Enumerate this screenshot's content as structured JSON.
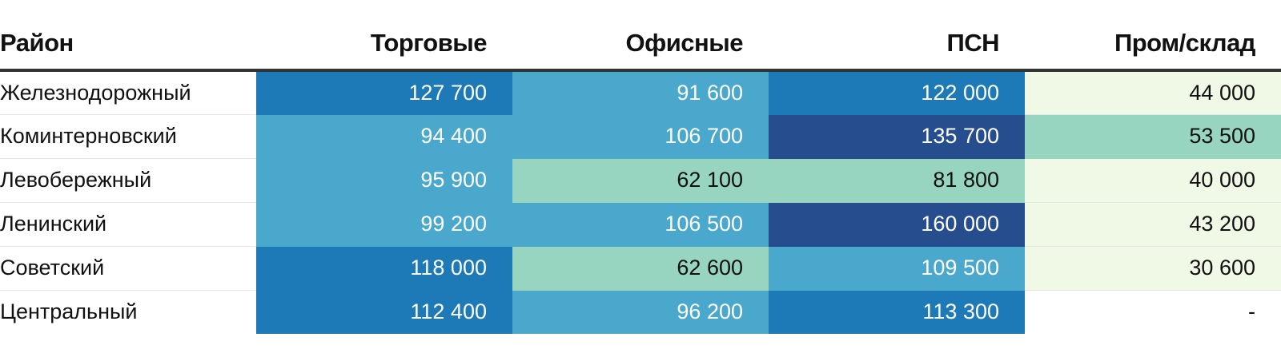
{
  "chart_data": {
    "type": "table",
    "columns": [
      "Район",
      "Торговые",
      "Офисные",
      "ПСН",
      "Пром/склад"
    ],
    "rows": [
      {
        "district": "Железнодорожный",
        "values": [
          "127 700",
          "91 600",
          "122 000",
          "44 000"
        ],
        "numbers": [
          127700,
          91600,
          122000,
          44000
        ]
      },
      {
        "district": "Коминтерновский",
        "values": [
          "94 400",
          "106 700",
          "135 700",
          "53 500"
        ],
        "numbers": [
          94400,
          106700,
          135700,
          53500
        ]
      },
      {
        "district": "Левобережный",
        "values": [
          "95 900",
          "62 100",
          "81 800",
          "40 000"
        ],
        "numbers": [
          95900,
          62100,
          81800,
          40000
        ]
      },
      {
        "district": "Ленинский",
        "values": [
          "99 200",
          "106 500",
          "160 000",
          "43 200"
        ],
        "numbers": [
          99200,
          106500,
          160000,
          43200
        ]
      },
      {
        "district": "Советский",
        "values": [
          "118 000",
          "62 600",
          "109 500",
          "30 600"
        ],
        "numbers": [
          118000,
          62600,
          109500,
          30600
        ]
      },
      {
        "district": "Центральный",
        "values": [
          "112 400",
          "96 200",
          "113 300",
          "-"
        ],
        "numbers": [
          112400,
          96200,
          113300,
          null
        ]
      }
    ],
    "color_scale": {
      "thresholds": [
        50000,
        85000,
        110000,
        130000
      ],
      "fills": [
        "#f0f8e6",
        "#97d5c0",
        "#4aa8cc",
        "#1d7ab7",
        "#264e8e"
      ],
      "text_colors": [
        "#111111",
        "#111111",
        "#ffffff",
        "#ffffff",
        "#ffffff"
      ],
      "empty_fill": "#ffffff"
    }
  }
}
